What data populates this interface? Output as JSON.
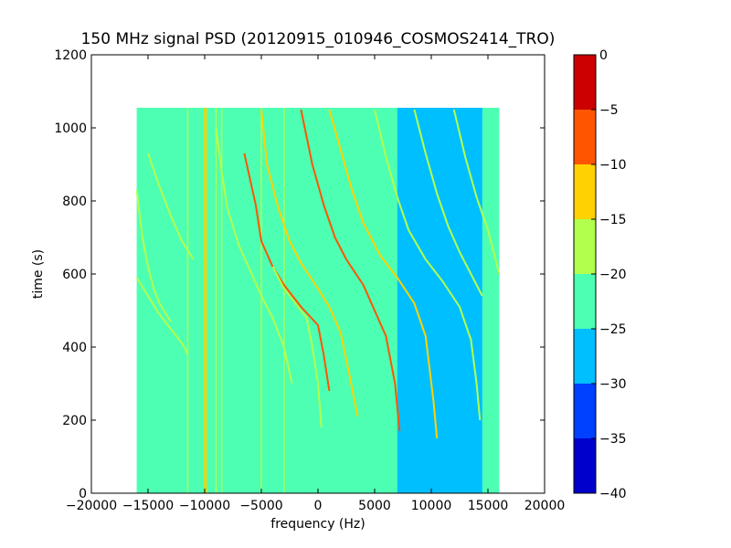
{
  "chart_data": {
    "type": "heatmap",
    "title": "150 MHz signal PSD (20120915_010946_COSMOS2414_TRO)",
    "xlabel": "frequency (Hz)",
    "ylabel": "time (s)",
    "xlim": [
      -20000,
      20000
    ],
    "ylim": [
      0,
      1200
    ],
    "xticks": [
      -20000,
      -15000,
      -10000,
      -5000,
      0,
      5000,
      10000,
      15000,
      20000
    ],
    "xtick_labels": [
      "−20000",
      "−15000",
      "−10000",
      "−5000",
      "0",
      "5000",
      "10000",
      "15000",
      "20000"
    ],
    "yticks": [
      0,
      200,
      400,
      600,
      800,
      1000,
      1200
    ],
    "ytick_labels": [
      "0",
      "200",
      "400",
      "600",
      "800",
      "1000",
      "1200"
    ],
    "data_extent": {
      "x": [
        -16000,
        16000
      ],
      "y": [
        0,
        1055
      ]
    },
    "grid": false,
    "colorbar": {
      "levels": [
        -40,
        -35,
        -30,
        -25,
        -20,
        -15,
        -10,
        -5,
        0
      ],
      "tick_labels": [
        "−40",
        "−35",
        "−30",
        "−25",
        "−20",
        "−15",
        "−10",
        "−5",
        "0"
      ],
      "colors": [
        "#0000cd",
        "#0040ff",
        "#00bfff",
        "#4dffb3",
        "#b3ff4d",
        "#ffd200",
        "#ff5500",
        "#cc0000"
      ]
    },
    "background_level_db": -22.5,
    "low_band": {
      "level_db": -27.5,
      "x_range": [
        7000,
        14500
      ],
      "y_range": [
        0,
        1055
      ]
    },
    "vertical_lines": [
      {
        "x": -11500,
        "y_range": [
          0,
          1055
        ],
        "level_db": -17.5
      },
      {
        "x": -10000,
        "y_range": [
          0,
          1055
        ],
        "level_db": -12.5
      },
      {
        "x": -9800,
        "y_range": [
          0,
          1055
        ],
        "level_db": -12.5
      },
      {
        "x": -9000,
        "y_range": [
          0,
          1055
        ],
        "level_db": -17.5
      },
      {
        "x": -8500,
        "y_range": [
          0,
          1055
        ],
        "level_db": -17.5
      },
      {
        "x": -5000,
        "y_range": [
          0,
          1055
        ],
        "level_db": -17.5
      },
      {
        "x": -3000,
        "y_range": [
          0,
          1055
        ],
        "level_db": -17.5
      }
    ],
    "signal_traces": [
      {
        "points": [
          [
            -16000,
            590
          ],
          [
            -15000,
            540
          ],
          [
            -14000,
            490
          ],
          [
            -13000,
            450
          ],
          [
            -12000,
            410
          ],
          [
            -11500,
            380
          ]
        ],
        "level_db": -17.5
      },
      {
        "points": [
          [
            -16000,
            830
          ],
          [
            -15500,
            700
          ],
          [
            -15000,
            620
          ],
          [
            -14500,
            560
          ],
          [
            -14000,
            520
          ],
          [
            -13000,
            470
          ]
        ],
        "level_db": -17.5
      },
      {
        "points": [
          [
            -15000,
            930
          ],
          [
            -14000,
            840
          ],
          [
            -13000,
            760
          ],
          [
            -12000,
            690
          ],
          [
            -11000,
            640
          ]
        ],
        "level_db": -17.5
      },
      {
        "points": [
          [
            -9000,
            1000
          ],
          [
            -8500,
            880
          ],
          [
            -8000,
            780
          ],
          [
            -7000,
            680
          ],
          [
            -6000,
            610
          ],
          [
            -5000,
            540
          ],
          [
            -4000,
            480
          ],
          [
            -3000,
            400
          ],
          [
            -2300,
            300
          ]
        ],
        "level_db": -17.5
      },
      {
        "points": [
          [
            -6500,
            930
          ],
          [
            -5500,
            790
          ],
          [
            -5000,
            690
          ],
          [
            -4000,
            620
          ],
          [
            -3000,
            570
          ],
          [
            -1500,
            510
          ],
          [
            0,
            460
          ],
          [
            500,
            380
          ],
          [
            1000,
            280
          ]
        ],
        "level_db": -7.5
      },
      {
        "points": [
          [
            -5000,
            1050
          ],
          [
            -4500,
            900
          ],
          [
            -3500,
            780
          ],
          [
            -2500,
            690
          ],
          [
            -1500,
            630
          ],
          [
            0,
            560
          ],
          [
            1000,
            510
          ],
          [
            2000,
            440
          ],
          [
            2800,
            320
          ],
          [
            3500,
            210
          ]
        ],
        "level_db": -12.5
      },
      {
        "points": [
          [
            -1500,
            1050
          ],
          [
            -500,
            900
          ],
          [
            500,
            790
          ],
          [
            1500,
            700
          ],
          [
            2500,
            640
          ],
          [
            4000,
            570
          ],
          [
            5000,
            500
          ],
          [
            6000,
            430
          ],
          [
            6800,
            300
          ],
          [
            7200,
            170
          ]
        ],
        "level_db": -7.5
      },
      {
        "points": [
          [
            1000,
            1050
          ],
          [
            2000,
            940
          ],
          [
            3000,
            830
          ],
          [
            4000,
            740
          ],
          [
            5500,
            650
          ],
          [
            7000,
            590
          ],
          [
            8500,
            520
          ],
          [
            9500,
            430
          ],
          [
            10200,
            250
          ],
          [
            10500,
            150
          ]
        ],
        "level_db": -12.5
      },
      {
        "points": [
          [
            5000,
            1050
          ],
          [
            6000,
            920
          ],
          [
            7000,
            810
          ],
          [
            8000,
            720
          ],
          [
            9500,
            640
          ],
          [
            11000,
            580
          ],
          [
            12500,
            510
          ],
          [
            13500,
            420
          ],
          [
            14000,
            300
          ],
          [
            14300,
            200
          ]
        ],
        "level_db": -17.5
      },
      {
        "points": [
          [
            8500,
            1050
          ],
          [
            9500,
            930
          ],
          [
            10500,
            820
          ],
          [
            11500,
            730
          ],
          [
            12500,
            660
          ],
          [
            13500,
            600
          ],
          [
            14500,
            540
          ]
        ],
        "level_db": -17.5
      },
      {
        "points": [
          [
            12000,
            1050
          ],
          [
            13000,
            920
          ],
          [
            14000,
            810
          ],
          [
            15000,
            720
          ],
          [
            16000,
            600
          ]
        ],
        "level_db": -17.5
      },
      {
        "points": [
          [
            -4000,
            620
          ],
          [
            -3000,
            560
          ],
          [
            -2000,
            520
          ],
          [
            -1000,
            480
          ],
          [
            -500,
            400
          ],
          [
            0,
            300
          ],
          [
            300,
            180
          ]
        ],
        "level_db": -17.5
      }
    ]
  }
}
